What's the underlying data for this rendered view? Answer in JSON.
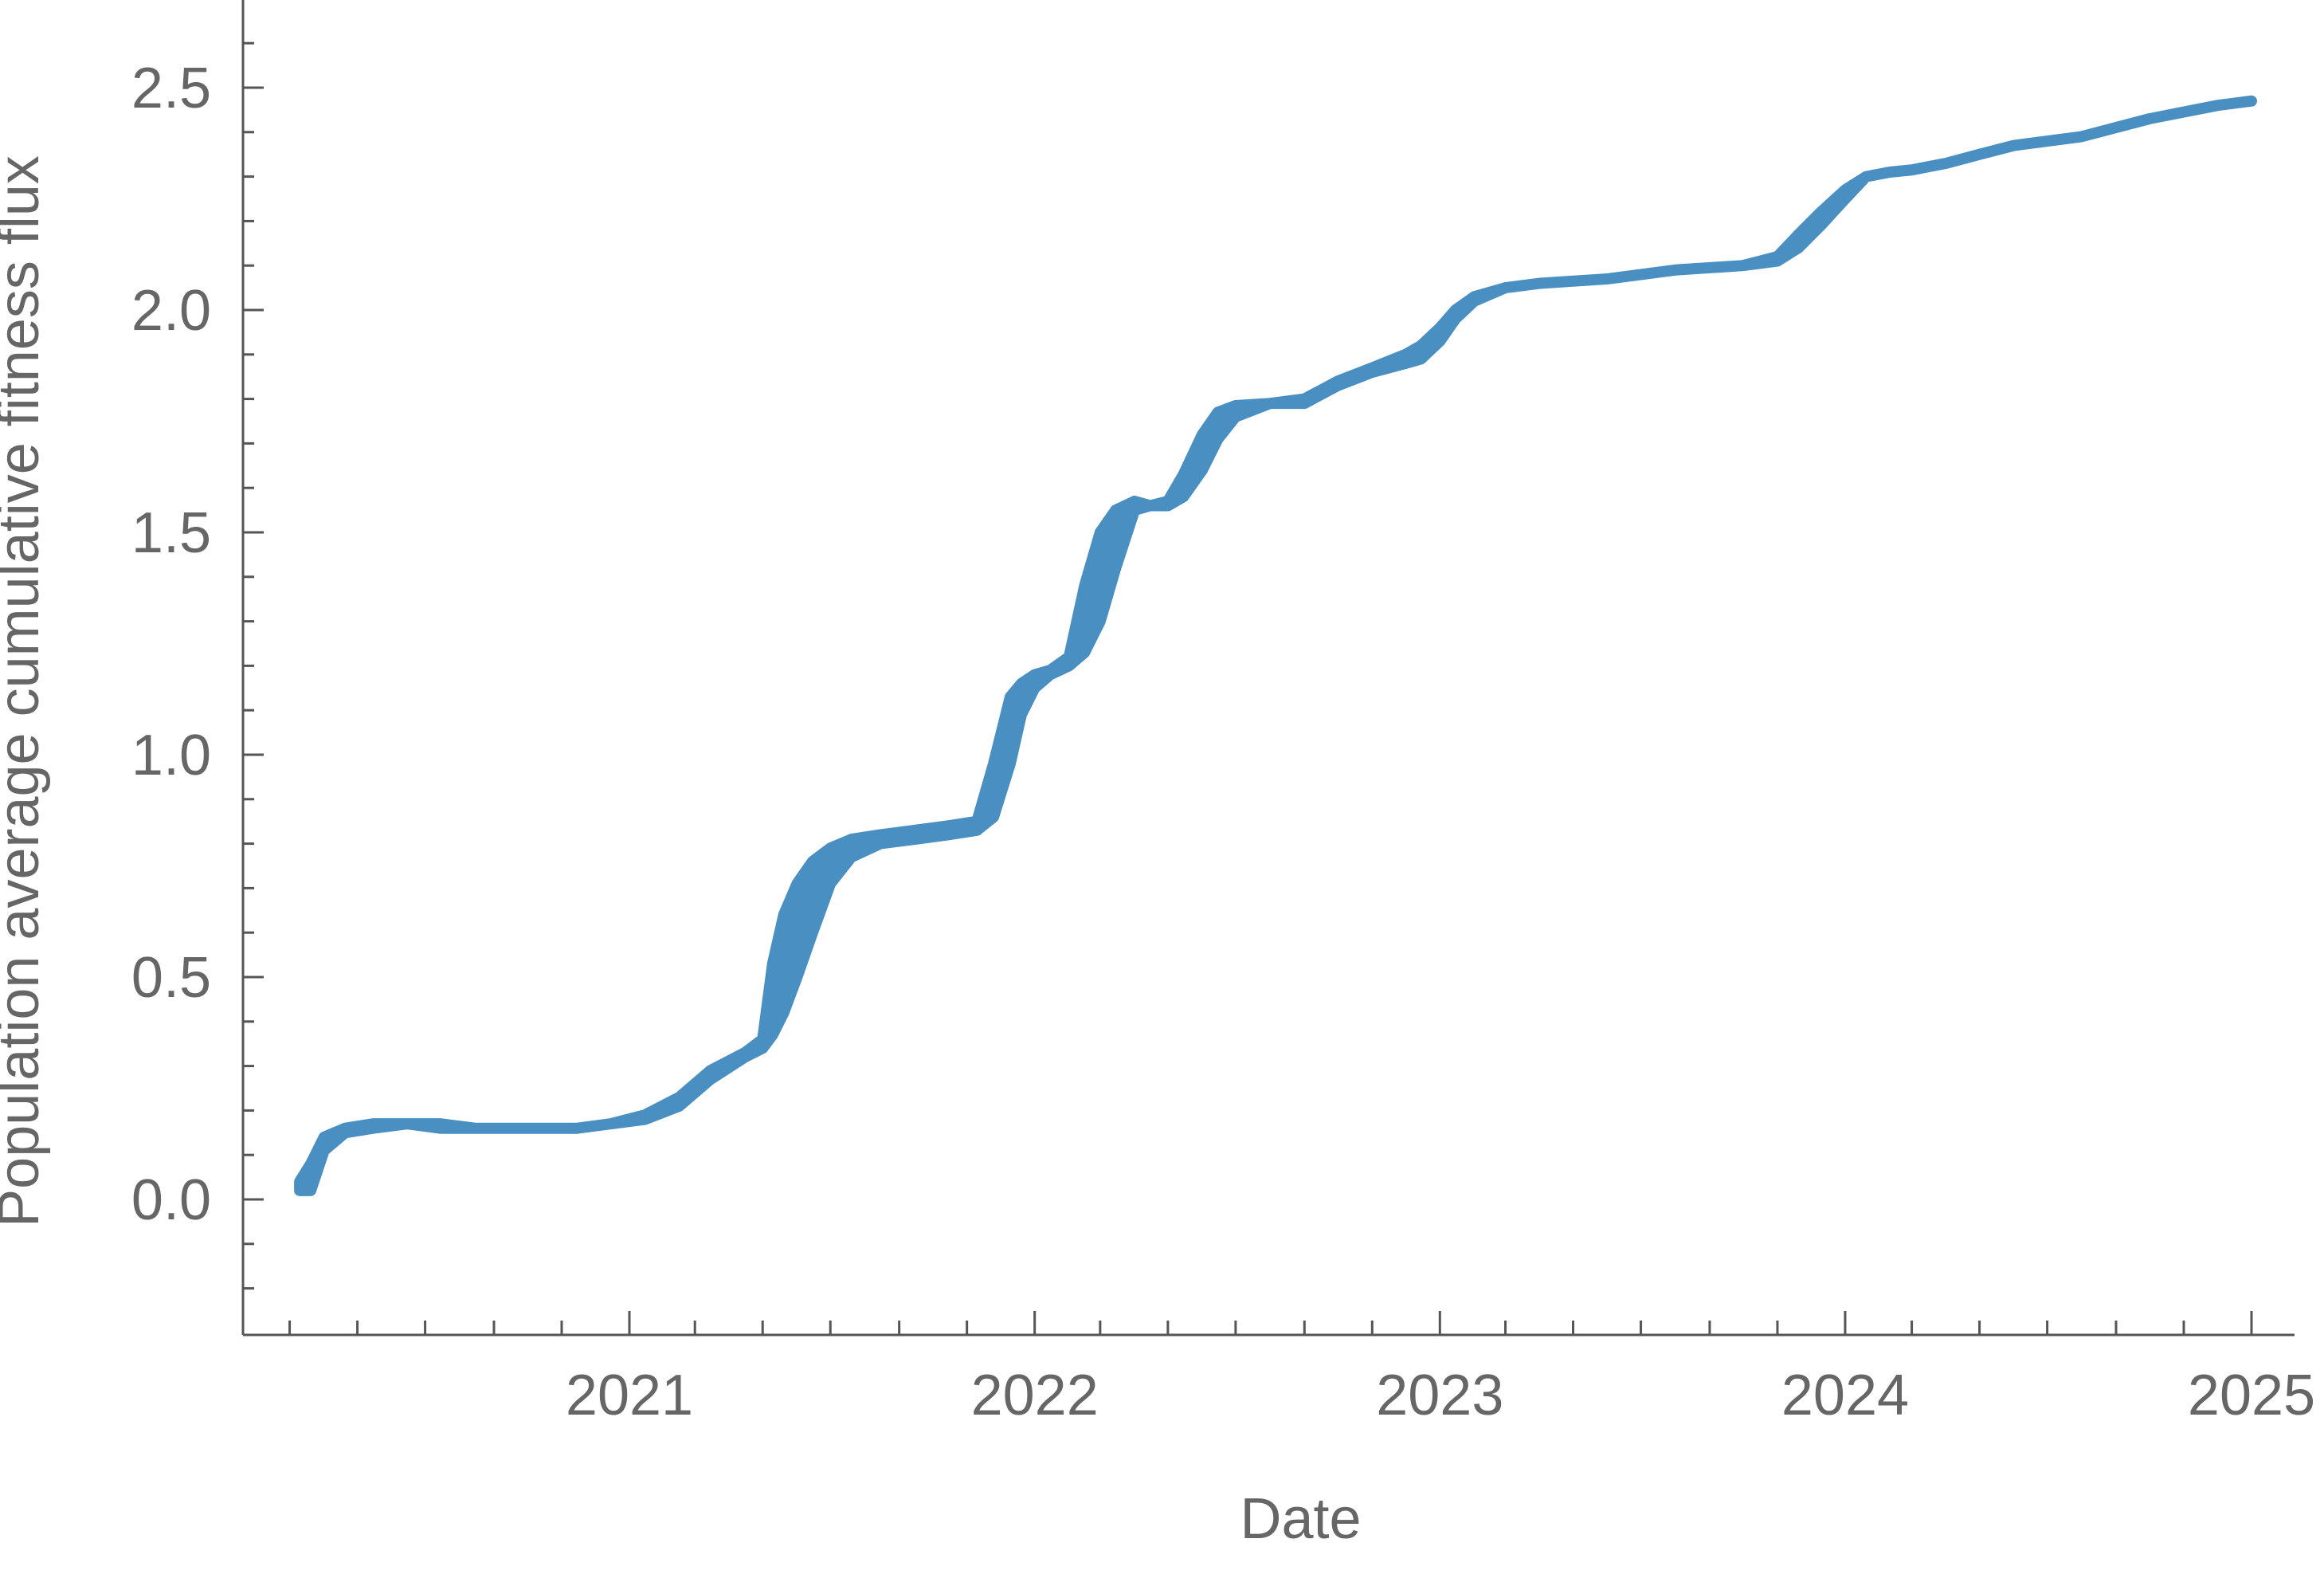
{
  "chart_data": {
    "type": "area",
    "title": "",
    "xlabel": "Date",
    "ylabel": "Population average cumulative fitness flux",
    "xlim": [
      "2020-01-15",
      "2025-04-01"
    ],
    "ylim": [
      -0.3,
      2.7
    ],
    "x_ticks": [
      "2021",
      "2022",
      "2023",
      "2024",
      "2025"
    ],
    "y_ticks": [
      "0.0",
      "0.5",
      "1.0",
      "1.5",
      "2.0",
      "2.5"
    ],
    "grid": false,
    "legend": "none",
    "color": "#4a8fc2",
    "series": [
      {
        "x": [
          "2020-03-10",
          "2020-03-20",
          "2020-04-01",
          "2020-04-20",
          "2020-05-15",
          "2020-06-15",
          "2020-07-15",
          "2020-08-15",
          "2020-09-15",
          "2020-10-15",
          "2020-11-15",
          "2020-12-15",
          "2021-01-15",
          "2021-02-15",
          "2021-03-15",
          "2021-04-15",
          "2021-05-01",
          "2021-05-10",
          "2021-05-20",
          "2021-06-01",
          "2021-06-15",
          "2021-07-01",
          "2021-07-20",
          "2021-08-15",
          "2021-09-15",
          "2021-10-15",
          "2021-11-10",
          "2021-11-25",
          "2021-12-10",
          "2021-12-20",
          "2022-01-01",
          "2022-01-15",
          "2022-02-01",
          "2022-02-15",
          "2022-03-01",
          "2022-03-15",
          "2022-04-01",
          "2022-04-15",
          "2022-05-01",
          "2022-05-15",
          "2022-06-01",
          "2022-06-15",
          "2022-07-01",
          "2022-08-01",
          "2022-09-01",
          "2022-10-01",
          "2022-11-01",
          "2022-12-01",
          "2022-12-15",
          "2023-01-01",
          "2023-01-15",
          "2023-02-01",
          "2023-03-01",
          "2023-04-01",
          "2023-06-01",
          "2023-08-01",
          "2023-10-01",
          "2023-11-01",
          "2023-11-20",
          "2023-12-10",
          "2024-01-01",
          "2024-01-20",
          "2024-02-10",
          "2024-03-01",
          "2024-04-01",
          "2024-05-01",
          "2024-06-01",
          "2024-08-01",
          "2024-10-01",
          "2024-12-01",
          "2025-01-01"
        ],
        "upper": [
          0.04,
          0.08,
          0.14,
          0.16,
          0.17,
          0.17,
          0.17,
          0.16,
          0.16,
          0.16,
          0.16,
          0.17,
          0.19,
          0.23,
          0.29,
          0.33,
          0.36,
          0.53,
          0.64,
          0.71,
          0.76,
          0.79,
          0.81,
          0.82,
          0.83,
          0.84,
          0.85,
          0.98,
          1.13,
          1.16,
          1.18,
          1.19,
          1.22,
          1.38,
          1.5,
          1.55,
          1.57,
          1.56,
          1.57,
          1.63,
          1.72,
          1.77,
          1.785,
          1.79,
          1.8,
          1.84,
          1.87,
          1.9,
          1.92,
          1.96,
          2.0,
          2.03,
          2.05,
          2.06,
          2.07,
          2.09,
          2.1,
          2.12,
          2.17,
          2.22,
          2.27,
          2.3,
          2.31,
          2.315,
          2.33,
          2.35,
          2.37,
          2.39,
          2.43,
          2.46,
          2.47
        ],
        "lower": [
          0.02,
          0.02,
          0.11,
          0.15,
          0.16,
          0.17,
          0.16,
          0.16,
          0.16,
          0.16,
          0.16,
          0.17,
          0.18,
          0.21,
          0.27,
          0.32,
          0.34,
          0.37,
          0.42,
          0.5,
          0.6,
          0.71,
          0.77,
          0.8,
          0.81,
          0.82,
          0.83,
          0.86,
          0.98,
          1.09,
          1.15,
          1.18,
          1.2,
          1.23,
          1.3,
          1.42,
          1.55,
          1.56,
          1.56,
          1.58,
          1.64,
          1.71,
          1.76,
          1.79,
          1.79,
          1.83,
          1.86,
          1.88,
          1.89,
          1.93,
          1.98,
          2.02,
          2.05,
          2.06,
          2.07,
          2.09,
          2.1,
          2.11,
          2.14,
          2.19,
          2.25,
          2.3,
          2.31,
          2.315,
          2.33,
          2.35,
          2.37,
          2.39,
          2.43,
          2.46,
          2.47
        ]
      }
    ]
  }
}
